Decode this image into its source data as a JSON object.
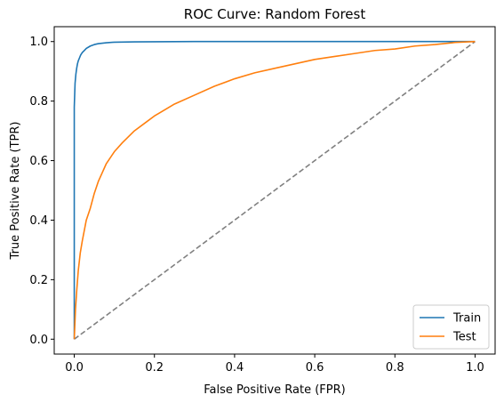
{
  "chart_data": {
    "type": "line",
    "title": "ROC Curve: Random Forest",
    "xlabel": "False Positive Rate (FPR)",
    "ylabel": "True Positive Rate (TPR)",
    "xlim": [
      -0.05,
      1.05
    ],
    "ylim": [
      -0.05,
      1.05
    ],
    "xticks": [
      0.0,
      0.2,
      0.4,
      0.6,
      0.8,
      1.0
    ],
    "yticks": [
      0.0,
      0.2,
      0.4,
      0.6,
      0.8,
      1.0
    ],
    "xtick_labels": [
      "0.0",
      "0.2",
      "0.4",
      "0.6",
      "0.8",
      "1.0"
    ],
    "ytick_labels": [
      "0.0",
      "0.2",
      "0.4",
      "0.6",
      "0.8",
      "1.0"
    ],
    "grid": false,
    "legend_position": "lower-right",
    "series": [
      {
        "name": "Train",
        "color": "#1f77b4",
        "x": [
          0.0,
          0.0,
          0.0,
          0.001,
          0.002,
          0.004,
          0.006,
          0.008,
          0.01,
          0.013,
          0.016,
          0.02,
          0.025,
          0.03,
          0.04,
          0.05,
          0.06,
          0.08,
          0.1,
          0.15,
          0.2,
          0.3,
          0.5,
          0.7,
          0.9,
          1.0
        ],
        "y": [
          0.0,
          0.4,
          0.78,
          0.82,
          0.86,
          0.89,
          0.91,
          0.925,
          0.935,
          0.945,
          0.955,
          0.963,
          0.97,
          0.977,
          0.985,
          0.99,
          0.993,
          0.996,
          0.998,
          0.999,
          0.9995,
          1.0,
          1.0,
          1.0,
          1.0,
          1.0
        ]
      },
      {
        "name": "Test",
        "color": "#ff7f0e",
        "x": [
          0.0,
          0.003,
          0.006,
          0.01,
          0.015,
          0.02,
          0.03,
          0.04,
          0.05,
          0.06,
          0.07,
          0.08,
          0.1,
          0.12,
          0.15,
          0.18,
          0.2,
          0.25,
          0.3,
          0.35,
          0.4,
          0.45,
          0.5,
          0.55,
          0.6,
          0.65,
          0.7,
          0.75,
          0.8,
          0.85,
          0.9,
          0.95,
          1.0
        ],
        "y": [
          0.0,
          0.1,
          0.16,
          0.23,
          0.29,
          0.33,
          0.4,
          0.44,
          0.49,
          0.53,
          0.56,
          0.59,
          0.63,
          0.66,
          0.7,
          0.73,
          0.75,
          0.79,
          0.82,
          0.85,
          0.875,
          0.895,
          0.91,
          0.925,
          0.94,
          0.95,
          0.96,
          0.97,
          0.975,
          0.985,
          0.99,
          0.997,
          1.0
        ]
      },
      {
        "name": "",
        "color": "#808080",
        "dashed": true,
        "x": [
          0.0,
          1.0
        ],
        "y": [
          0.0,
          1.0
        ]
      }
    ]
  }
}
